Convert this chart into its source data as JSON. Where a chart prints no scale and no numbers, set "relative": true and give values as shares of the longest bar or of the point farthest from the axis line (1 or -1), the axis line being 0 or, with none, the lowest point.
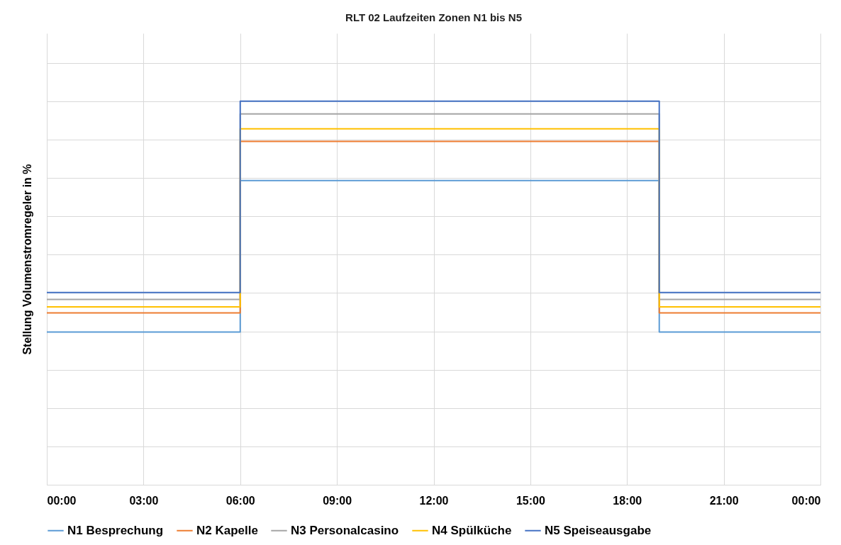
{
  "chart_data": {
    "type": "step",
    "title": "RLT 02 Laufzeiten Zonen N1 bis N5",
    "ylabel": "Stellung Volumenstromregeler in %",
    "relative": true,
    "x": [
      0,
      6,
      19,
      24
    ],
    "xlim": [
      0,
      24
    ],
    "xticks": [
      {
        "value": 0,
        "label": "00:00"
      },
      {
        "value": 3,
        "label": "03:00"
      },
      {
        "value": 6,
        "label": "06:00"
      },
      {
        "value": 9,
        "label": "09:00"
      },
      {
        "value": 12,
        "label": "12:00"
      },
      {
        "value": 15,
        "label": "15:00"
      },
      {
        "value": 18,
        "label": "18:00"
      },
      {
        "value": 21,
        "label": "21:00"
      },
      {
        "value": 24,
        "label": "00:00"
      }
    ],
    "series": [
      {
        "name": "N1 Besprechung",
        "color": "#5b9bd5",
        "values": [
          0.398,
          0.793,
          0.398,
          0.398
        ]
      },
      {
        "name": "N2 Kapelle",
        "color": "#ed7d31",
        "values": [
          0.448,
          0.895,
          0.448,
          0.448
        ]
      },
      {
        "name": "N3 Personalcasino",
        "color": "#a5a5a5",
        "values": [
          0.483,
          0.967,
          0.483,
          0.483
        ]
      },
      {
        "name": "N4 Spülküche",
        "color": "#ffc000",
        "values": [
          0.464,
          0.928,
          0.464,
          0.464
        ]
      },
      {
        "name": "N5 Speiseausgabe",
        "color": "#4472c4",
        "values": [
          0.501,
          1.0,
          0.501,
          0.501
        ]
      }
    ],
    "grid": true,
    "legend": "bottom",
    "tick_labels": "x",
    "marker": "none",
    "line_style": "solid"
  }
}
